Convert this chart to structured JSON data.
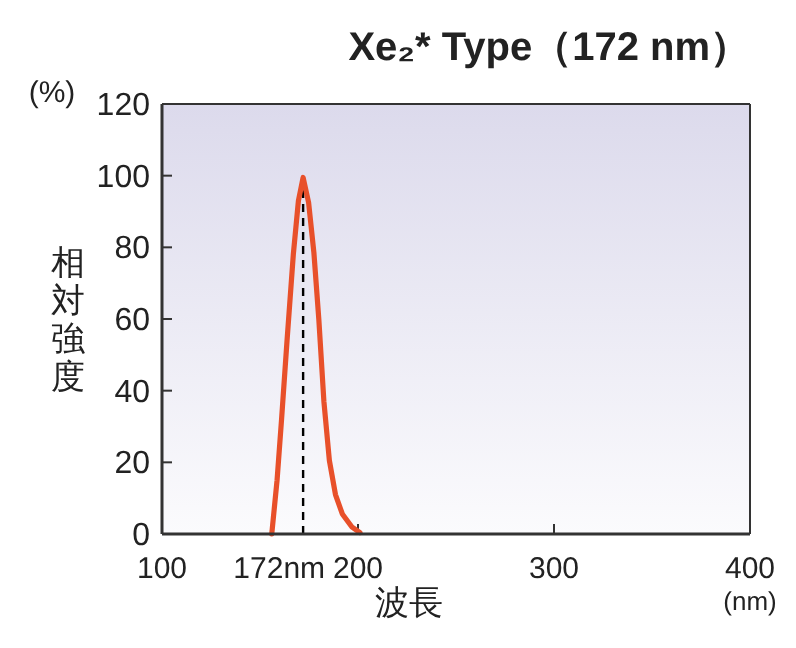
{
  "chart_data": {
    "type": "line",
    "title": "Xe₂* Type（172 nm）",
    "xlabel": "波長",
    "ylabel": "相対強度",
    "annotations": [
      "(%)",
      "(nm)"
    ],
    "xlim": [
      100,
      400
    ],
    "ylim": [
      0,
      120
    ],
    "xticks": [
      100,
      200,
      300,
      400
    ],
    "yticks": [
      0,
      20,
      40,
      60,
      80,
      100,
      120
    ],
    "series": [
      {
        "color": "#e8502a",
        "x": [
          156,
          158.7,
          161,
          163.8,
          167,
          169.6,
          172,
          174.8,
          177.5,
          180,
          182.6,
          185.4,
          188.5,
          192,
          197,
          201
        ],
        "values": [
          0,
          15,
          32,
          54,
          78,
          93,
          99.5,
          92.5,
          78.5,
          60,
          37,
          20.5,
          11,
          5.6,
          1.9,
          0.4
        ]
      }
    ],
    "ref_lines": [
      {
        "axis": "x",
        "value": 172,
        "label": "172nm",
        "color": "#000000",
        "line_style": "dashed"
      }
    ]
  }
}
